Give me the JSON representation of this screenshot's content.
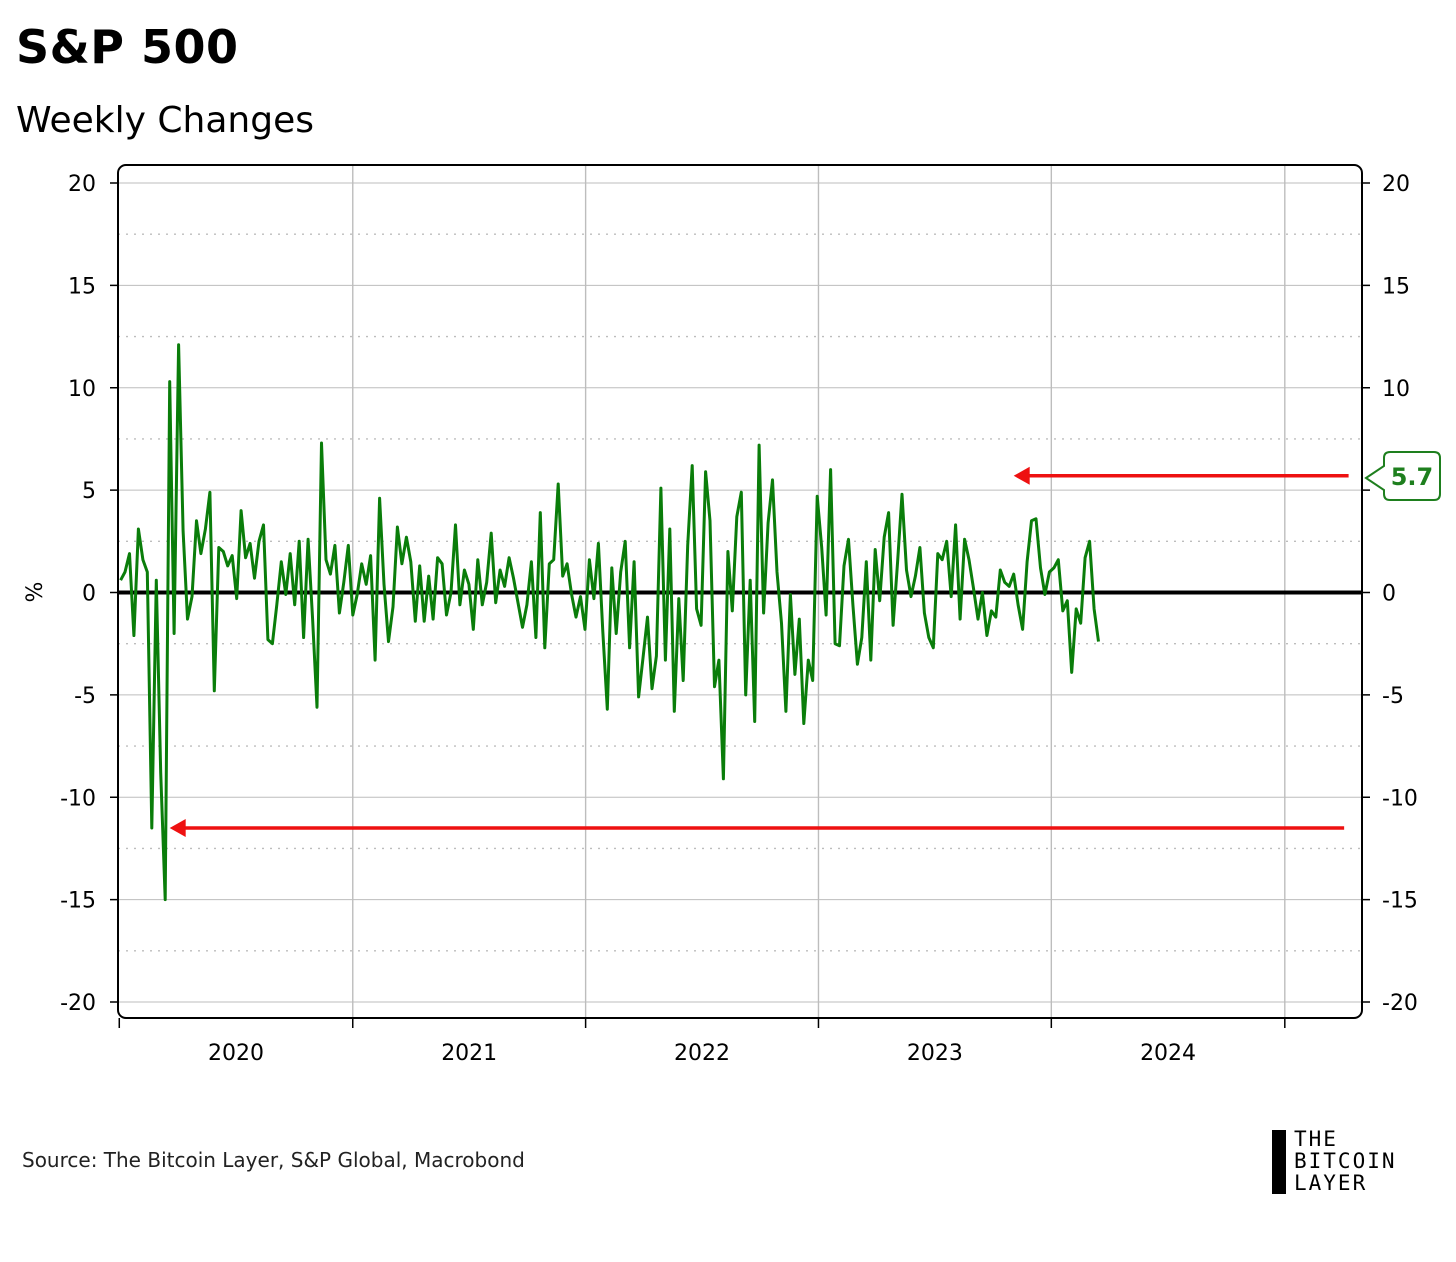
{
  "title": "S&P 500",
  "subtitle": "Weekly Changes",
  "source": "Source: The Bitcoin Layer, S&P Global, Macrobond",
  "logo": {
    "line1": "THE",
    "line2": "BITCOIN",
    "line3": "LAYER"
  },
  "colors": {
    "series": "#0a7d0a",
    "arrow": "#ee1111",
    "zero_line": "#000000",
    "grid": "#bdbdbd",
    "callout_border": "#1e7f1e"
  },
  "chart_data": {
    "type": "line",
    "title": "S&P 500",
    "subtitle": "Weekly Changes",
    "ylabel": "%",
    "ylim": [
      -20,
      20
    ],
    "y_ticks": [
      "20",
      "15",
      "10",
      "5",
      "0",
      "-5",
      "-10",
      "-15",
      "-20"
    ],
    "x_tick_labels": [
      "2020",
      "2021",
      "2022",
      "2023",
      "2024"
    ],
    "x_range": [
      "2019-12-30",
      "2025-05-02"
    ],
    "grid": true,
    "right_axis": true,
    "annotations": [
      {
        "type": "callout",
        "text": "5.7",
        "value": 5.7
      },
      {
        "type": "arrow",
        "from": "2025-04-04",
        "to": "2020-03-20",
        "value": -11.5
      },
      {
        "type": "arrow",
        "from": "2025-04-11",
        "to": "2023-11-03",
        "value": 5.7
      }
    ],
    "series": [
      {
        "x_start": "2020-01-03",
        "x_step_days": 7,
        "values": [
          0.6,
          1.0,
          1.9,
          -2.1,
          3.1,
          1.6,
          1.0,
          -11.5,
          0.6,
          -8.8,
          -15.0,
          10.3,
          -2.0,
          12.1,
          3.0,
          -1.3,
          -0.2,
          3.5,
          1.9,
          3.1,
          4.9,
          -4.8,
          2.2,
          2.0,
          1.3,
          1.8,
          -0.3,
          4.0,
          1.7,
          2.4,
          0.7,
          2.5,
          3.3,
          -2.3,
          -2.5,
          -0.6,
          1.5,
          -0.1,
          1.9,
          -0.6,
          2.5,
          -2.2,
          2.6,
          -1.3,
          -5.6,
          7.3,
          1.6,
          0.9,
          2.3,
          -1.0,
          0.5,
          2.3,
          -1.1,
          -0.1,
          1.4,
          0.4,
          1.8,
          -3.3,
          4.6,
          0.4,
          -2.4,
          -0.7,
          3.2,
          1.4,
          2.7,
          1.5,
          -1.4,
          1.3,
          -1.4,
          0.8,
          -1.3,
          1.7,
          1.4,
          -1.1,
          0.0,
          3.3,
          -0.6,
          1.1,
          0.4,
          -1.8,
          1.6,
          -0.6,
          0.5,
          2.9,
          -0.5,
          1.1,
          0.3,
          1.7,
          0.7,
          -0.5,
          -1.7,
          -0.6,
          1.5,
          -2.2,
          3.9,
          -2.7,
          1.4,
          1.6,
          5.3,
          0.8,
          1.4,
          -0.1,
          -1.2,
          -0.2,
          -1.8,
          1.6,
          -0.3,
          2.4,
          -1.9,
          -5.7,
          1.2,
          -2.0,
          1.0,
          2.5,
          -2.7,
          1.5,
          -5.1,
          -3.2,
          -1.2,
          -4.7,
          -3.1,
          5.1,
          -3.3,
          3.1,
          -5.8,
          -0.3,
          -4.3,
          2.3,
          6.2,
          -0.8,
          -1.6,
          5.9,
          3.5,
          -4.6,
          -3.3,
          -9.1,
          2.0,
          -0.9,
          3.7,
          4.9,
          -5.0,
          0.6,
          -6.3,
          7.2,
          -1.0,
          3.4,
          5.5,
          1.0,
          -1.5,
          -5.8,
          -0.1,
          -4.0,
          -1.3,
          -6.4,
          -3.3,
          -4.3,
          4.7,
          2.2,
          -1.1,
          6.0,
          -2.5,
          -2.6,
          1.3,
          2.6,
          -0.6,
          -3.5,
          -2.2,
          1.5,
          -3.3,
          2.1,
          -0.4,
          2.7,
          3.9,
          -1.6,
          1.5,
          4.8,
          1.1,
          -0.2,
          0.8,
          2.2,
          -1.0,
          -2.2,
          -2.7,
          1.9,
          1.6,
          2.5,
          -0.2,
          3.3,
          -1.3,
          2.6,
          1.6,
          0.2,
          -1.3,
          0.0,
          -2.1,
          -0.9,
          -1.2,
          1.1,
          0.5,
          0.3,
          0.9,
          -0.6,
          -1.8,
          1.5,
          3.5,
          3.6,
          1.2,
          -0.1,
          1.0,
          1.2,
          1.6,
          -0.9,
          -0.4,
          -3.9,
          -0.8,
          -1.5,
          1.7,
          2.5,
          -0.8,
          -2.4
        ]
      }
    ]
  }
}
